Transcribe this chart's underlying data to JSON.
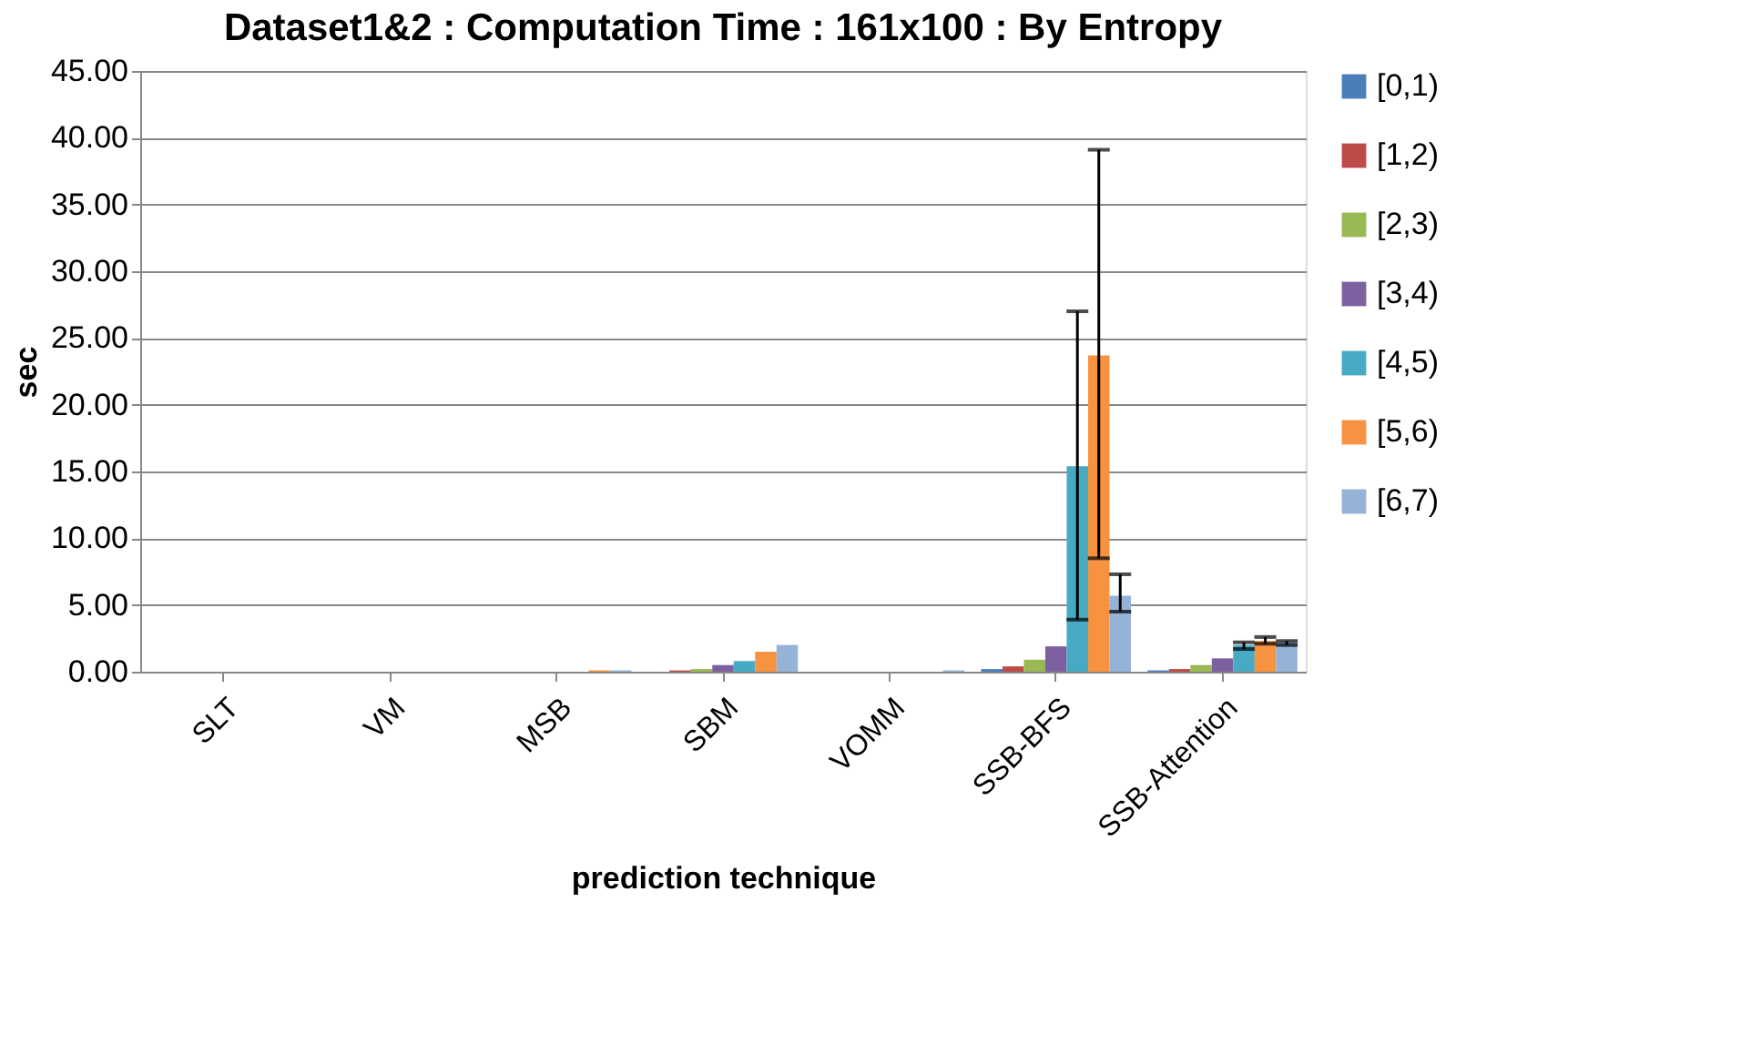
{
  "chart_data": {
    "type": "bar",
    "title": "Dataset1&2 : Computation Time : 161x100 : By Entropy",
    "xlabel": "prediction technique",
    "ylabel": "sec",
    "categories": [
      "SLT",
      "VM",
      "MSB",
      "SBM",
      "VOMM",
      "SSB-BFS",
      "SSB-Attention"
    ],
    "series": [
      {
        "name": "[0,1)",
        "color": "#4a7ebb",
        "values": [
          0.0,
          0.0,
          0.0,
          0.0,
          0.0,
          0.2,
          0.1
        ]
      },
      {
        "name": "[1,2)",
        "color": "#be4b48",
        "values": [
          0.0,
          0.0,
          0.0,
          0.1,
          0.0,
          0.4,
          0.2
        ]
      },
      {
        "name": "[2,3)",
        "color": "#98b954",
        "values": [
          0.0,
          0.0,
          0.0,
          0.2,
          0.0,
          0.9,
          0.5
        ]
      },
      {
        "name": "[3,4)",
        "color": "#7d60a0",
        "values": [
          0.0,
          0.0,
          0.0,
          0.5,
          0.0,
          1.9,
          1.0
        ]
      },
      {
        "name": "[4,5)",
        "color": "#46aac5",
        "values": [
          0.0,
          0.0,
          0.0,
          0.8,
          0.0,
          15.4,
          2.0
        ],
        "errors": [
          null,
          null,
          null,
          null,
          null,
          [
            3.9,
            27.0
          ],
          [
            1.7,
            2.2
          ]
        ]
      },
      {
        "name": "[5,6)",
        "color": "#f69240",
        "values": [
          0.0,
          0.0,
          0.1,
          1.5,
          0.0,
          23.7,
          2.3
        ],
        "errors": [
          null,
          null,
          null,
          null,
          null,
          [
            8.5,
            39.1
          ],
          [
            2.1,
            2.6
          ]
        ]
      },
      {
        "name": "[6,7)",
        "color": "#95b3d7",
        "values": [
          0.0,
          0.0,
          0.1,
          2.0,
          0.1,
          5.7,
          2.2
        ],
        "errors": [
          null,
          null,
          null,
          null,
          null,
          [
            4.5,
            7.3
          ],
          [
            2.0,
            2.3
          ]
        ]
      }
    ],
    "ylim": [
      0,
      45
    ],
    "yticks": [
      {
        "value": 0,
        "label": "0.00"
      },
      {
        "value": 5,
        "label": "5.00"
      },
      {
        "value": 10,
        "label": "10.00"
      },
      {
        "value": 15,
        "label": "15.00"
      },
      {
        "value": 20,
        "label": "20.00"
      },
      {
        "value": 25,
        "label": "25.00"
      },
      {
        "value": 30,
        "label": "30.00"
      },
      {
        "value": 35,
        "label": "35.00"
      },
      {
        "value": 40,
        "label": "40.00"
      },
      {
        "value": 45,
        "label": "45.00"
      }
    ],
    "grid": "y",
    "legend": "right"
  }
}
